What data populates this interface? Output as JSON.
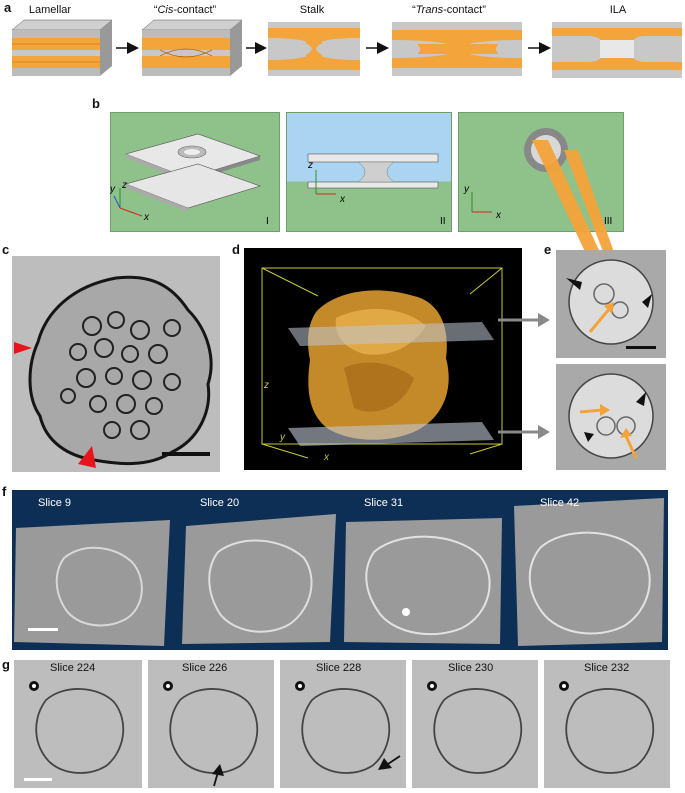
{
  "panel_a": {
    "letter": "a",
    "stages": [
      {
        "title_pre": "Lamellar",
        "title_em": "",
        "title_post": ""
      },
      {
        "title_pre": "“",
        "title_em": "Cis",
        "title_post": "-contact”"
      },
      {
        "title_pre": "Stalk",
        "title_em": "",
        "title_post": ""
      },
      {
        "title_pre": "“",
        "title_em": "Trans",
        "title_post": "-contact”"
      },
      {
        "title_pre": "ILA",
        "title_em": "",
        "title_post": ""
      }
    ],
    "colors": {
      "lipid": "#f3a43a",
      "water": "#c8c8c8"
    }
  },
  "panel_b": {
    "letter": "b",
    "subpanels": [
      "I",
      "II",
      "III"
    ],
    "axes": {
      "x": "x",
      "y": "y",
      "z": "z"
    },
    "colors": {
      "background": "#8fc18a",
      "sky": "#aad4f2"
    }
  },
  "panel_c": {
    "letter": "c"
  },
  "panel_d": {
    "letter": "d",
    "axes": {
      "x": "x",
      "y": "y",
      "z": "z"
    }
  },
  "panel_e": {
    "letter": "e"
  },
  "panel_f": {
    "letter": "f",
    "slices": [
      "Slice 9",
      "Slice 20",
      "Slice 31",
      "Slice 42"
    ]
  },
  "panel_g": {
    "letter": "g",
    "slices": [
      "Slice 224",
      "Slice 226",
      "Slice 228",
      "Slice 230",
      "Slice 232"
    ]
  }
}
